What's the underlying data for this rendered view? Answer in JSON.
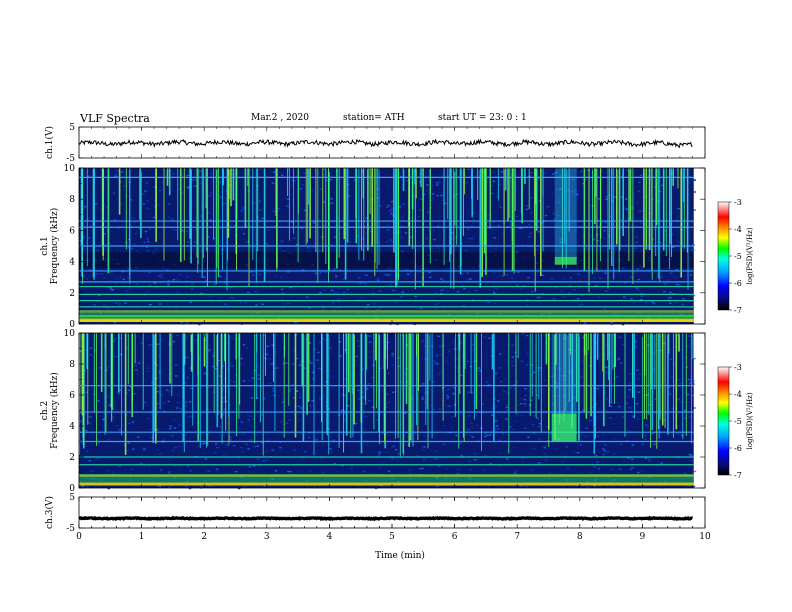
{
  "header": {
    "title": "VLF  Spectra",
    "date": "Mar.2  , 2020",
    "station": "station= ATH",
    "start_ut": "start  UT  =   23: 0   : 1"
  },
  "chart_data": [
    {
      "type": "line",
      "panel": "ch1-waveform",
      "ylabel": "ch.1(V)",
      "ylim": [
        -5,
        5
      ],
      "y_ticks": [
        "5",
        "-5"
      ],
      "x": [
        0,
        1,
        2,
        3,
        4,
        5,
        6,
        7,
        8,
        9,
        9.8
      ],
      "y": [
        -0.3,
        -0.2,
        -0.1,
        -0.2,
        -0.1,
        -0.2,
        -0.1,
        -0.2,
        -0.2,
        -0.3,
        -0.6
      ]
    },
    {
      "type": "heatmap",
      "panel": "ch1-spectrogram",
      "ylabel_top": "ch.1",
      "ylabel": "Frequency  (kHz)",
      "ylim": [
        0,
        10
      ],
      "y_ticks": [
        "0",
        "2",
        "4",
        "6",
        "8",
        "10"
      ],
      "colorbar": {
        "label": "log(PSD)(V²/Hz)",
        "range": [
          -7,
          -3
        ],
        "ticks": [
          "-3",
          "-4",
          "-5",
          "-6",
          "-7"
        ]
      },
      "horizontal_lines_khz": [
        0.2,
        0.5,
        0.8,
        1.1,
        1.5,
        1.9,
        2.4,
        2.7,
        3.4,
        5.0,
        6.2,
        6.6,
        9.4
      ],
      "intense_patch": {
        "t_min": [
          7.6,
          7.95
        ],
        "f_khz": [
          3.8,
          4.3
        ]
      }
    },
    {
      "type": "heatmap",
      "panel": "ch2-spectrogram",
      "ylabel_top": "ch.2",
      "ylabel": "Frequency  (kHz)",
      "ylim": [
        0,
        10
      ],
      "y_ticks": [
        "0",
        "2",
        "4",
        "6",
        "8",
        "10"
      ],
      "colorbar": {
        "label": "log(PSD)(V²/Hz)",
        "range": [
          -7,
          -3
        ],
        "ticks": [
          "-3",
          "-4",
          "-5",
          "-6",
          "-7"
        ]
      },
      "horizontal_lines_khz": [
        0.8,
        1.5,
        2.0,
        3.0,
        3.6,
        4.9,
        6.6
      ],
      "intense_patch": {
        "t_min": [
          7.55,
          7.95
        ],
        "f_khz": [
          3.0,
          4.8
        ]
      }
    },
    {
      "type": "line",
      "panel": "ch3-waveform",
      "ylabel": "ch.3(V)",
      "ylim": [
        -5,
        5
      ],
      "y_ticks": [
        "5",
        "-5"
      ],
      "x": [
        0,
        9.8
      ],
      "y": [
        -1.9,
        -1.9
      ]
    }
  ],
  "x_axis": {
    "label": "Time  (min)",
    "range": [
      0,
      10
    ],
    "ticks": [
      "0",
      "1",
      "2",
      "3",
      "4",
      "5",
      "6",
      "7",
      "8",
      "9",
      "10"
    ]
  }
}
